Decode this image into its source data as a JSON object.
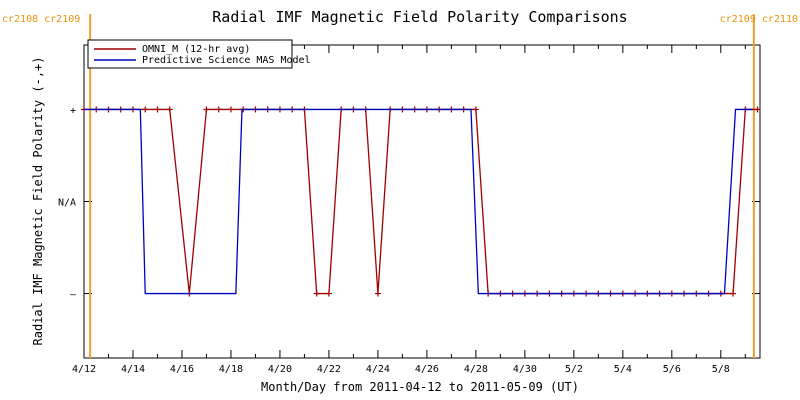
{
  "chart_data": {
    "type": "line",
    "title": "Radial IMF Magnetic Field Polarity Comparisons",
    "xlabel": "Month/Day from 2011-04-12 to 2011-05-09 (UT)",
    "ylabel": "Radial IMF Magnetic Field Polarity (-,+)",
    "x_range_days": [
      0,
      27.6
    ],
    "ylim": [
      -1.7,
      1.7
    ],
    "x_ticks": [
      {
        "day": 0,
        "label": "4/12"
      },
      {
        "day": 2,
        "label": "4/14"
      },
      {
        "day": 4,
        "label": "4/16"
      },
      {
        "day": 6,
        "label": "4/18"
      },
      {
        "day": 8,
        "label": "4/20"
      },
      {
        "day": 10,
        "label": "4/22"
      },
      {
        "day": 12,
        "label": "4/24"
      },
      {
        "day": 14,
        "label": "4/26"
      },
      {
        "day": 16,
        "label": "4/28"
      },
      {
        "day": 18,
        "label": "4/30"
      },
      {
        "day": 20,
        "label": "5/2"
      },
      {
        "day": 22,
        "label": "5/4"
      },
      {
        "day": 24,
        "label": "5/6"
      },
      {
        "day": 26,
        "label": "5/8"
      }
    ],
    "y_ticks": [
      {
        "value": 1,
        "label": "+"
      },
      {
        "value": 0,
        "label": "N/A"
      },
      {
        "value": -1,
        "label": "–"
      }
    ],
    "carrington_markers": [
      {
        "day": 0.25,
        "labels": [
          "cr2108",
          "cr2109"
        ],
        "anchor": "start"
      },
      {
        "day": 27.35,
        "labels": [
          "cr2109",
          "cr2110"
        ],
        "anchor": "end"
      }
    ],
    "legend": {
      "position": "top-left"
    },
    "series": [
      {
        "name": "OMNI_M (12-hr avg)",
        "color": "#a00000",
        "marker": "plus",
        "points": [
          [
            0.0,
            1
          ],
          [
            0.5,
            1
          ],
          [
            1.0,
            1
          ],
          [
            1.5,
            1
          ],
          [
            2.0,
            1
          ],
          [
            2.5,
            1
          ],
          [
            3.0,
            1
          ],
          [
            3.5,
            1
          ],
          [
            4.3,
            -1
          ],
          [
            5.0,
            1
          ],
          [
            5.5,
            1
          ],
          [
            6.0,
            1
          ],
          [
            6.5,
            1
          ],
          [
            7.0,
            1
          ],
          [
            7.5,
            1
          ],
          [
            8.0,
            1
          ],
          [
            8.5,
            1
          ],
          [
            9.0,
            1
          ],
          [
            9.5,
            -1
          ],
          [
            10.0,
            -1
          ],
          [
            10.5,
            1
          ],
          [
            11.0,
            1
          ],
          [
            11.5,
            1
          ],
          [
            12.0,
            -1
          ],
          [
            12.5,
            1
          ],
          [
            13.0,
            1
          ],
          [
            13.5,
            1
          ],
          [
            14.0,
            1
          ],
          [
            14.5,
            1
          ],
          [
            15.0,
            1
          ],
          [
            15.5,
            1
          ],
          [
            16.0,
            1
          ],
          [
            16.5,
            -1
          ],
          [
            17.0,
            -1
          ],
          [
            17.5,
            -1
          ],
          [
            18.0,
            -1
          ],
          [
            18.5,
            -1
          ],
          [
            19.0,
            -1
          ],
          [
            19.5,
            -1
          ],
          [
            20.0,
            -1
          ],
          [
            20.5,
            -1
          ],
          [
            21.0,
            -1
          ],
          [
            21.5,
            -1
          ],
          [
            22.0,
            -1
          ],
          [
            22.5,
            -1
          ],
          [
            23.0,
            -1
          ],
          [
            23.5,
            -1
          ],
          [
            24.0,
            -1
          ],
          [
            24.5,
            -1
          ],
          [
            25.0,
            -1
          ],
          [
            25.5,
            -1
          ],
          [
            26.0,
            -1
          ],
          [
            26.5,
            -1
          ],
          [
            27.0,
            1
          ],
          [
            27.5,
            1
          ]
        ]
      },
      {
        "name": "Predictive Science MAS Model",
        "color": "#0000c0",
        "marker": "none",
        "points": [
          [
            0.0,
            1
          ],
          [
            2.3,
            1
          ],
          [
            2.5,
            -1
          ],
          [
            6.2,
            -1
          ],
          [
            6.45,
            1
          ],
          [
            15.8,
            1
          ],
          [
            16.1,
            -1
          ],
          [
            26.15,
            -1
          ],
          [
            26.6,
            1
          ],
          [
            27.3,
            1
          ]
        ]
      }
    ]
  }
}
